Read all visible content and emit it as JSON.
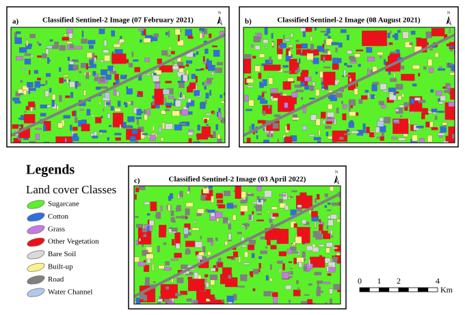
{
  "panels": [
    {
      "label": "a)",
      "title": "Classified Sentinel-2 Image (07 February 2021)",
      "north": "N"
    },
    {
      "label": "b)",
      "title": "Classified Sentinel-2 Image (08 August 2021)",
      "north": "N"
    },
    {
      "label": "c)",
      "title": "Classified Sentinel-2 Image (03 April 2022)",
      "north": "N"
    }
  ],
  "legend": {
    "title": "Legends",
    "subtitle": "Land cover Classes",
    "items": [
      {
        "label": "Sugarcane",
        "color": "#5cf02a"
      },
      {
        "label": "Cotton",
        "color": "#2e6fe0"
      },
      {
        "label": "Grass",
        "color": "#c77be0"
      },
      {
        "label": "Other Vegetation",
        "color": "#ee1018"
      },
      {
        "label": "Bare Soil",
        "color": "#d9d9d9"
      },
      {
        "label": "Built-up",
        "color": "#fbf38a"
      },
      {
        "label": "Road",
        "color": "#808080"
      },
      {
        "label": "Water Channel",
        "color": "#b4c8ef"
      }
    ]
  },
  "scale_bar": {
    "ticks": [
      0,
      1,
      2,
      4
    ],
    "unit": "Km"
  }
}
